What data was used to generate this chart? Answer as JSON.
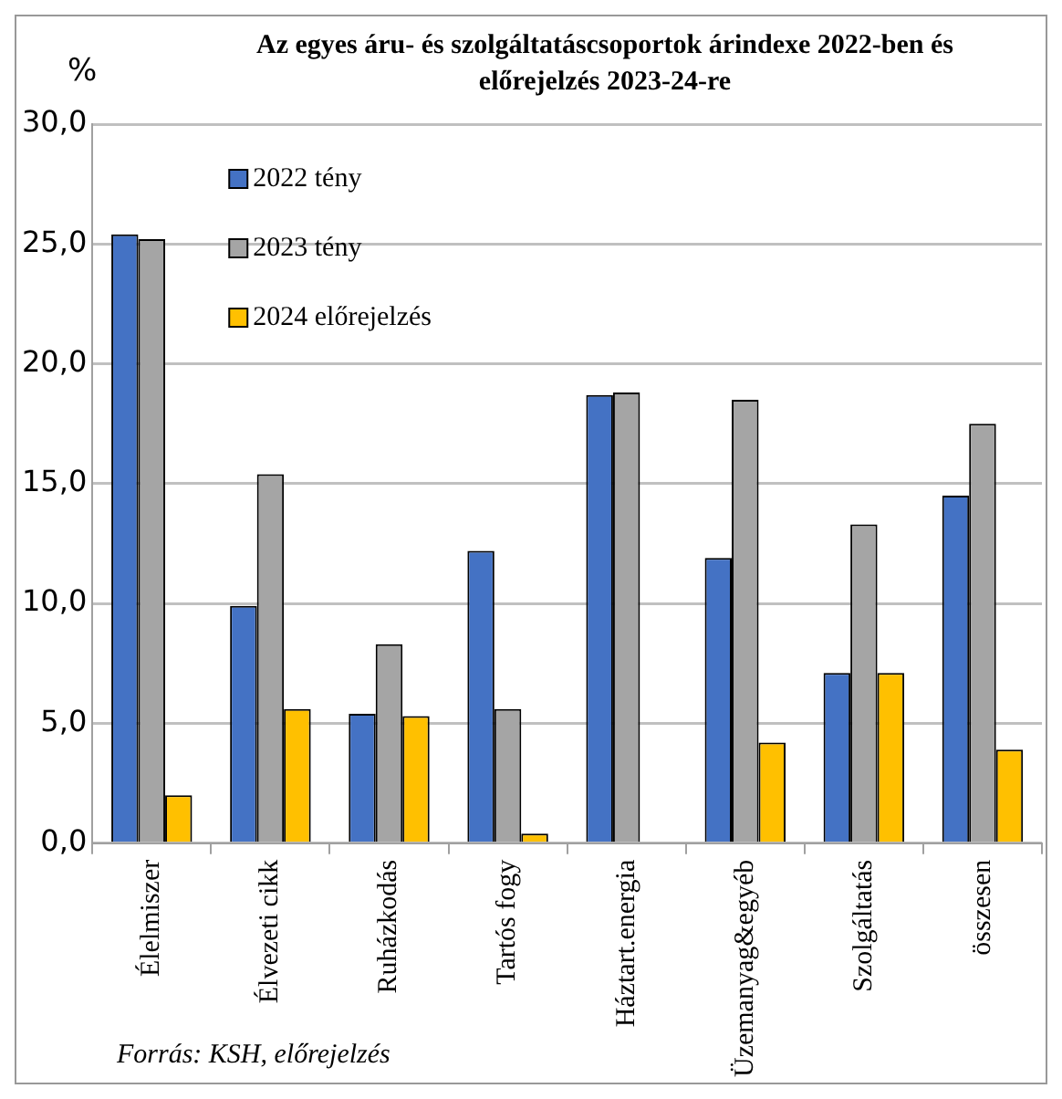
{
  "chart_data": {
    "type": "bar",
    "title": "Az egyes áru- és szolgáltatáscsoportok árindexe 2022-ben és előrejelzés 2023-24-re",
    "ylabel": "%",
    "categories": [
      "Élelmiszer",
      "Élvezeti cikk",
      "Ruházkodás",
      "Tartós fogy",
      "Háztart.energia",
      "Üzemanyag&egyéb",
      "Szolgáltatás",
      "összesen"
    ],
    "series": [
      {
        "name": "2022 tény",
        "color": "#4472c4",
        "values": [
          25.4,
          9.9,
          5.4,
          12.2,
          18.7,
          11.9,
          7.1,
          14.5
        ]
      },
      {
        "name": "2023 tény",
        "color": "#a5a5a5",
        "values": [
          25.2,
          15.4,
          8.3,
          5.6,
          18.8,
          18.5,
          13.3,
          17.5
        ]
      },
      {
        "name": "2024 előrejelzés",
        "color": "#ffc000",
        "values": [
          2.0,
          5.6,
          5.3,
          0.4,
          0.0,
          4.2,
          7.1,
          3.9
        ]
      }
    ],
    "ylim": [
      0,
      30
    ],
    "yticks": [
      {
        "value": 0,
        "label": "0,0"
      },
      {
        "value": 5,
        "label": "5,0"
      },
      {
        "value": 10,
        "label": "10,0"
      },
      {
        "value": 15,
        "label": "15,0"
      },
      {
        "value": 20,
        "label": "20,0"
      },
      {
        "value": 25,
        "label": "25,0"
      },
      {
        "value": 30,
        "label": "30,0"
      }
    ],
    "grid": "y",
    "legend": "top left",
    "annotations": [
      "Forrás: KSH, előrejelzés"
    ]
  }
}
